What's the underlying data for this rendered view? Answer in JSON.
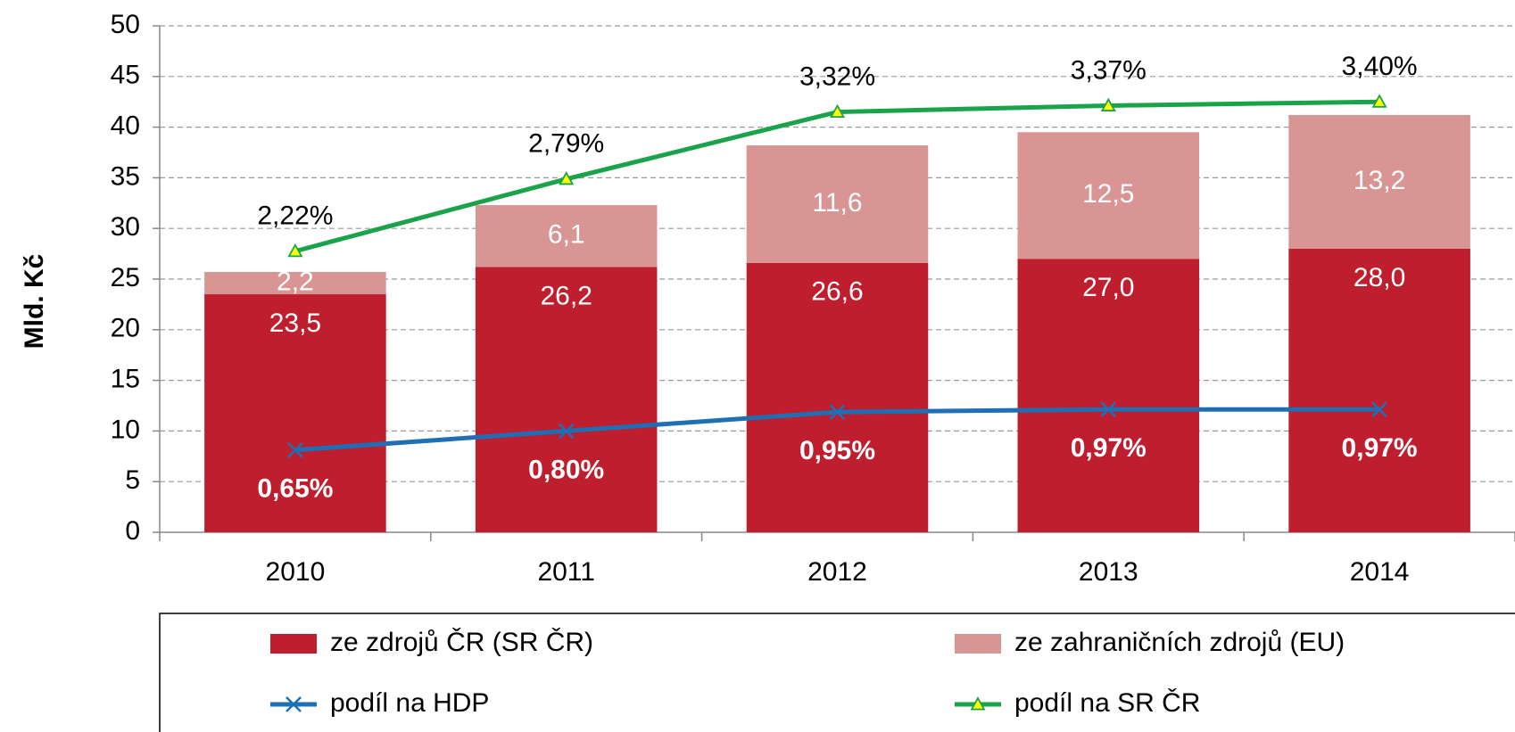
{
  "chart_data": {
    "type": "bar",
    "stacked": true,
    "ylabel": "Mld. Kč",
    "categories": [
      "2010",
      "2011",
      "2012",
      "2013",
      "2014"
    ],
    "series": [
      {
        "name": "ze zdrojů ČR (SR ČR)",
        "type": "bar",
        "color": "#be1e2d",
        "values": [
          23.5,
          26.2,
          26.6,
          27.0,
          28.0
        ],
        "value_labels": [
          "23,5",
          "26,2",
          "26,6",
          "27,0",
          "28,0"
        ]
      },
      {
        "name": "ze zahraničních zdrojů (EU)",
        "type": "bar",
        "color": "#d99594",
        "values": [
          2.2,
          6.1,
          11.6,
          12.5,
          13.2
        ],
        "value_labels": [
          "2,2",
          "6,1",
          "11,6",
          "12,5",
          "13,2"
        ]
      },
      {
        "name": "podíl na HDP",
        "type": "line",
        "axis": "y2",
        "color": "#1f6fb4",
        "marker": "x",
        "values": [
          0.65,
          0.8,
          0.95,
          0.97,
          0.97
        ],
        "value_labels": [
          "0,65%",
          "0,80%",
          "0,95%",
          "0,97%",
          "0,97%"
        ]
      },
      {
        "name": "podíl na SR ČR",
        "type": "line",
        "axis": "y2",
        "color": "#1aa34a",
        "marker": "triangle",
        "values": [
          2.22,
          2.79,
          3.32,
          3.37,
          3.4
        ],
        "value_labels": [
          "2,22%",
          "2,79%",
          "3,32%",
          "3,37%",
          "3,40%"
        ]
      }
    ],
    "ylim": [
      0,
      50
    ],
    "yticks": [
      0,
      5,
      10,
      15,
      20,
      25,
      30,
      35,
      40,
      45,
      50
    ],
    "y2lim": [
      0,
      4
    ],
    "grid": true,
    "legend": "bottom"
  }
}
